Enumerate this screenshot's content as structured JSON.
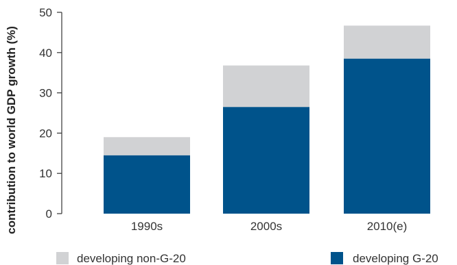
{
  "chart_data": {
    "type": "bar",
    "stacked": true,
    "categories": [
      "1990s",
      "2000s",
      "2010(e)"
    ],
    "series": [
      {
        "name": "developing G-20",
        "values": [
          14.5,
          26.5,
          38.5
        ],
        "color": "#00538b"
      },
      {
        "name": "developing non-G-20",
        "values": [
          4.5,
          10.3,
          8.2
        ],
        "color": "#d1d2d4"
      }
    ],
    "ylabel": "contribution to world GDP growth (%)",
    "xlabel": "",
    "ylim": [
      0,
      50
    ],
    "yticks": [
      0,
      10,
      20,
      30,
      40,
      50
    ],
    "grid": false,
    "legend_position": "bottom"
  }
}
